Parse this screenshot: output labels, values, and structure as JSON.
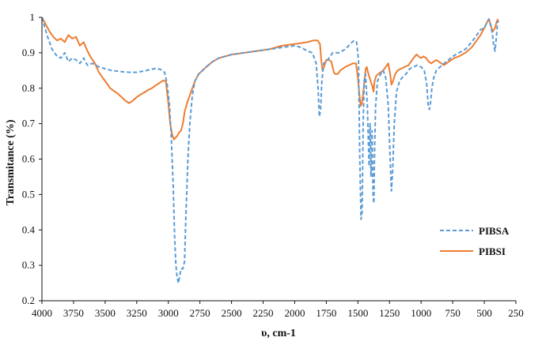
{
  "chart_data": {
    "type": "line",
    "xlabel": "υ, cm-1",
    "ylabel": "Transmitance (%)",
    "xlim": [
      4000,
      250
    ],
    "ylim": [
      0.2,
      1.0
    ],
    "x_reversed": true,
    "grid": false,
    "legend_position": "bottom-right",
    "x_ticks": [
      4000,
      3750,
      3500,
      3250,
      3000,
      2750,
      2500,
      2250,
      2000,
      1750,
      1500,
      1250,
      1000,
      750,
      500,
      250
    ],
    "y_ticks": [
      0.2,
      0.3,
      0.4,
      0.5,
      0.6,
      0.7,
      0.8,
      0.9,
      1.0
    ],
    "y_tick_labels": [
      "0.2",
      "0.3",
      "0.4",
      "0.5",
      "0.6",
      "0.7",
      "0.8",
      "0.9",
      "1"
    ],
    "series": [
      {
        "name": "PIBSA",
        "color": "#5b9bd5",
        "dash": "dashed",
        "points": [
          [
            4000,
            1.0
          ],
          [
            3960,
            0.95
          ],
          [
            3920,
            0.91
          ],
          [
            3880,
            0.89
          ],
          [
            3850,
            0.885
          ],
          [
            3820,
            0.9
          ],
          [
            3790,
            0.875
          ],
          [
            3760,
            0.885
          ],
          [
            3730,
            0.88
          ],
          [
            3700,
            0.87
          ],
          [
            3670,
            0.885
          ],
          [
            3640,
            0.865
          ],
          [
            3600,
            0.87
          ],
          [
            3550,
            0.86
          ],
          [
            3500,
            0.855
          ],
          [
            3450,
            0.85
          ],
          [
            3400,
            0.848
          ],
          [
            3350,
            0.846
          ],
          [
            3300,
            0.845
          ],
          [
            3250,
            0.845
          ],
          [
            3200,
            0.848
          ],
          [
            3150,
            0.852
          ],
          [
            3100,
            0.856
          ],
          [
            3060,
            0.853
          ],
          [
            3030,
            0.845
          ],
          [
            3010,
            0.815
          ],
          [
            2990,
            0.75
          ],
          [
            2975,
            0.65
          ],
          [
            2962,
            0.53
          ],
          [
            2950,
            0.38
          ],
          [
            2940,
            0.3
          ],
          [
            2930,
            0.265
          ],
          [
            2920,
            0.25
          ],
          [
            2910,
            0.27
          ],
          [
            2900,
            0.29
          ],
          [
            2885,
            0.29
          ],
          [
            2872,
            0.31
          ],
          [
            2860,
            0.45
          ],
          [
            2845,
            0.6
          ],
          [
            2830,
            0.7
          ],
          [
            2810,
            0.78
          ],
          [
            2790,
            0.82
          ],
          [
            2760,
            0.84
          ],
          [
            2700,
            0.86
          ],
          [
            2650,
            0.875
          ],
          [
            2600,
            0.885
          ],
          [
            2500,
            0.895
          ],
          [
            2400,
            0.9
          ],
          [
            2300,
            0.905
          ],
          [
            2200,
            0.91
          ],
          [
            2100,
            0.915
          ],
          [
            2000,
            0.92
          ],
          [
            1950,
            0.915
          ],
          [
            1900,
            0.905
          ],
          [
            1860,
            0.9
          ],
          [
            1830,
            0.87
          ],
          [
            1815,
            0.8
          ],
          [
            1805,
            0.72
          ],
          [
            1795,
            0.74
          ],
          [
            1785,
            0.82
          ],
          [
            1770,
            0.87
          ],
          [
            1740,
            0.88
          ],
          [
            1700,
            0.9
          ],
          [
            1650,
            0.9
          ],
          [
            1600,
            0.91
          ],
          [
            1560,
            0.925
          ],
          [
            1530,
            0.935
          ],
          [
            1510,
            0.93
          ],
          [
            1495,
            0.88
          ],
          [
            1485,
            0.6
          ],
          [
            1475,
            0.43
          ],
          [
            1467,
            0.45
          ],
          [
            1458,
            0.7
          ],
          [
            1450,
            0.82
          ],
          [
            1440,
            0.84
          ],
          [
            1425,
            0.75
          ],
          [
            1412,
            0.58
          ],
          [
            1404,
            0.7
          ],
          [
            1396,
            0.55
          ],
          [
            1388,
            0.68
          ],
          [
            1380,
            0.5
          ],
          [
            1374,
            0.475
          ],
          [
            1368,
            0.62
          ],
          [
            1360,
            0.75
          ],
          [
            1345,
            0.82
          ],
          [
            1320,
            0.84
          ],
          [
            1300,
            0.85
          ],
          [
            1280,
            0.83
          ],
          [
            1260,
            0.75
          ],
          [
            1245,
            0.6
          ],
          [
            1235,
            0.51
          ],
          [
            1225,
            0.57
          ],
          [
            1212,
            0.7
          ],
          [
            1195,
            0.79
          ],
          [
            1170,
            0.82
          ],
          [
            1150,
            0.83
          ],
          [
            1120,
            0.84
          ],
          [
            1090,
            0.855
          ],
          [
            1060,
            0.86
          ],
          [
            1030,
            0.865
          ],
          [
            1000,
            0.86
          ],
          [
            975,
            0.85
          ],
          [
            955,
            0.81
          ],
          [
            945,
            0.755
          ],
          [
            935,
            0.74
          ],
          [
            925,
            0.76
          ],
          [
            915,
            0.8
          ],
          [
            900,
            0.83
          ],
          [
            880,
            0.85
          ],
          [
            850,
            0.86
          ],
          [
            800,
            0.875
          ],
          [
            750,
            0.89
          ],
          [
            700,
            0.9
          ],
          [
            650,
            0.91
          ],
          [
            600,
            0.93
          ],
          [
            560,
            0.95
          ],
          [
            530,
            0.965
          ],
          [
            500,
            0.97
          ],
          [
            480,
            0.985
          ],
          [
            465,
            0.995
          ],
          [
            450,
            0.98
          ],
          [
            435,
            0.95
          ],
          [
            425,
            0.92
          ],
          [
            415,
            0.905
          ],
          [
            405,
            0.94
          ],
          [
            395,
            0.985
          ],
          [
            385,
            0.99
          ]
        ]
      },
      {
        "name": "PIBSI",
        "color": "#ed7d31",
        "dash": "solid",
        "points": [
          [
            4000,
            1.0
          ],
          [
            3970,
            0.98
          ],
          [
            3940,
            0.96
          ],
          [
            3910,
            0.945
          ],
          [
            3880,
            0.935
          ],
          [
            3850,
            0.94
          ],
          [
            3820,
            0.93
          ],
          [
            3790,
            0.95
          ],
          [
            3760,
            0.94
          ],
          [
            3730,
            0.945
          ],
          [
            3700,
            0.92
          ],
          [
            3670,
            0.93
          ],
          [
            3640,
            0.905
          ],
          [
            3610,
            0.885
          ],
          [
            3580,
            0.87
          ],
          [
            3550,
            0.845
          ],
          [
            3520,
            0.83
          ],
          [
            3490,
            0.815
          ],
          [
            3460,
            0.8
          ],
          [
            3430,
            0.792
          ],
          [
            3400,
            0.785
          ],
          [
            3370,
            0.775
          ],
          [
            3340,
            0.765
          ],
          [
            3310,
            0.758
          ],
          [
            3280,
            0.765
          ],
          [
            3250,
            0.775
          ],
          [
            3220,
            0.782
          ],
          [
            3190,
            0.788
          ],
          [
            3160,
            0.795
          ],
          [
            3130,
            0.8
          ],
          [
            3100,
            0.808
          ],
          [
            3070,
            0.815
          ],
          [
            3040,
            0.822
          ],
          [
            3020,
            0.82
          ],
          [
            3000,
            0.76
          ],
          [
            2985,
            0.7
          ],
          [
            2970,
            0.67
          ],
          [
            2955,
            0.655
          ],
          [
            2945,
            0.66
          ],
          [
            2930,
            0.665
          ],
          [
            2915,
            0.675
          ],
          [
            2900,
            0.68
          ],
          [
            2885,
            0.7
          ],
          [
            2870,
            0.735
          ],
          [
            2850,
            0.76
          ],
          [
            2830,
            0.78
          ],
          [
            2810,
            0.8
          ],
          [
            2790,
            0.82
          ],
          [
            2760,
            0.84
          ],
          [
            2700,
            0.86
          ],
          [
            2650,
            0.875
          ],
          [
            2600,
            0.885
          ],
          [
            2500,
            0.895
          ],
          [
            2400,
            0.9
          ],
          [
            2300,
            0.905
          ],
          [
            2200,
            0.91
          ],
          [
            2100,
            0.92
          ],
          [
            2000,
            0.925
          ],
          [
            1900,
            0.93
          ],
          [
            1850,
            0.935
          ],
          [
            1820,
            0.935
          ],
          [
            1800,
            0.925
          ],
          [
            1790,
            0.88
          ],
          [
            1780,
            0.85
          ],
          [
            1768,
            0.86
          ],
          [
            1750,
            0.88
          ],
          [
            1730,
            0.88
          ],
          [
            1710,
            0.875
          ],
          [
            1690,
            0.845
          ],
          [
            1680,
            0.84
          ],
          [
            1660,
            0.84
          ],
          [
            1640,
            0.85
          ],
          [
            1620,
            0.855
          ],
          [
            1600,
            0.86
          ],
          [
            1570,
            0.865
          ],
          [
            1540,
            0.87
          ],
          [
            1515,
            0.87
          ],
          [
            1500,
            0.83
          ],
          [
            1488,
            0.78
          ],
          [
            1478,
            0.75
          ],
          [
            1470,
            0.755
          ],
          [
            1460,
            0.78
          ],
          [
            1448,
            0.82
          ],
          [
            1438,
            0.855
          ],
          [
            1430,
            0.86
          ],
          [
            1420,
            0.845
          ],
          [
            1408,
            0.83
          ],
          [
            1395,
            0.815
          ],
          [
            1385,
            0.805
          ],
          [
            1376,
            0.79
          ],
          [
            1368,
            0.82
          ],
          [
            1355,
            0.835
          ],
          [
            1340,
            0.84
          ],
          [
            1320,
            0.845
          ],
          [
            1300,
            0.85
          ],
          [
            1280,
            0.86
          ],
          [
            1260,
            0.87
          ],
          [
            1245,
            0.84
          ],
          [
            1235,
            0.81
          ],
          [
            1222,
            0.82
          ],
          [
            1205,
            0.84
          ],
          [
            1185,
            0.85
          ],
          [
            1160,
            0.855
          ],
          [
            1130,
            0.86
          ],
          [
            1100,
            0.865
          ],
          [
            1070,
            0.88
          ],
          [
            1050,
            0.89
          ],
          [
            1035,
            0.895
          ],
          [
            1020,
            0.89
          ],
          [
            1000,
            0.885
          ],
          [
            980,
            0.89
          ],
          [
            960,
            0.885
          ],
          [
            940,
            0.875
          ],
          [
            920,
            0.87
          ],
          [
            900,
            0.875
          ],
          [
            880,
            0.88
          ],
          [
            860,
            0.875
          ],
          [
            840,
            0.87
          ],
          [
            820,
            0.865
          ],
          [
            800,
            0.87
          ],
          [
            780,
            0.875
          ],
          [
            760,
            0.88
          ],
          [
            740,
            0.885
          ],
          [
            700,
            0.89
          ],
          [
            650,
            0.9
          ],
          [
            600,
            0.915
          ],
          [
            560,
            0.935
          ],
          [
            530,
            0.95
          ],
          [
            500,
            0.97
          ],
          [
            480,
            0.985
          ],
          [
            462,
            0.995
          ],
          [
            448,
            0.975
          ],
          [
            432,
            0.96
          ],
          [
            415,
            0.97
          ],
          [
            400,
            0.99
          ],
          [
            390,
            0.995
          ]
        ]
      }
    ]
  }
}
